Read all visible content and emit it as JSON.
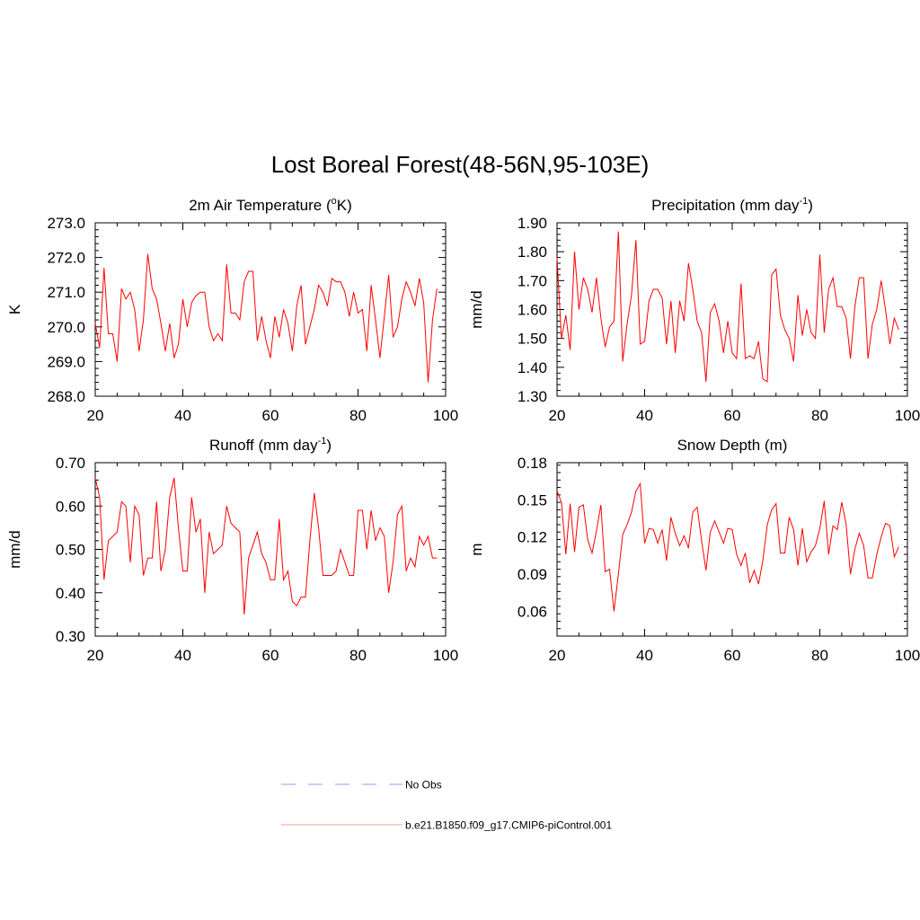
{
  "title": "Lost Boreal Forest(48-56N,95-103E)",
  "colors": {
    "model_line": "#ff0000",
    "obs_line": "#9999ff",
    "axis": "#000000"
  },
  "legend": {
    "obs_label": "No Obs",
    "model_label": "b.e21.B1850.f09_g17.CMIP6-piControl.001"
  },
  "chart_data": [
    {
      "type": "line",
      "title": "2m Air Temperature (°K)",
      "title_main": "2m Air Temperature (",
      "title_sup": "o",
      "title_after": "K)",
      "ylabel": "K",
      "xlabel": "",
      "xlim": [
        20,
        100
      ],
      "ylim": [
        268.0,
        273.0
      ],
      "xticks": [
        20,
        40,
        60,
        80,
        100
      ],
      "yticks": [
        268.0,
        269.0,
        270.0,
        271.0,
        272.0,
        273.0
      ],
      "ytick_labels": [
        "268.0",
        "269.0",
        "270.0",
        "271.0",
        "272.0",
        "273.0"
      ],
      "x": [
        20,
        21,
        22,
        23,
        24,
        25,
        26,
        27,
        28,
        29,
        30,
        31,
        32,
        33,
        34,
        35,
        36,
        37,
        38,
        39,
        40,
        41,
        42,
        43,
        44,
        45,
        46,
        47,
        48,
        49,
        50,
        51,
        52,
        53,
        54,
        55,
        56,
        57,
        58,
        59,
        60,
        61,
        62,
        63,
        64,
        65,
        66,
        67,
        68,
        69,
        70,
        71,
        72,
        73,
        74,
        75,
        76,
        77,
        78,
        79,
        80,
        81,
        82,
        83,
        84,
        85,
        86,
        87,
        88,
        89,
        90,
        91,
        92,
        93,
        94,
        95,
        96,
        97,
        98
      ],
      "series": [
        {
          "name": "b.e21.B1850.f09_g17.CMIP6-piControl.001",
          "values": [
            270.1,
            269.4,
            271.7,
            269.8,
            269.8,
            269.0,
            271.1,
            270.8,
            271.0,
            270.5,
            269.3,
            270.2,
            272.1,
            271.1,
            270.8,
            270.1,
            269.3,
            270.1,
            269.1,
            269.5,
            270.8,
            270.0,
            270.7,
            270.9,
            271.0,
            271.0,
            270.0,
            269.6,
            269.8,
            269.6,
            271.8,
            270.4,
            270.4,
            270.2,
            271.3,
            271.6,
            271.6,
            269.6,
            270.3,
            269.6,
            269.1,
            270.3,
            269.7,
            270.5,
            270.1,
            269.3,
            270.6,
            271.2,
            269.5,
            270.0,
            270.5,
            271.2,
            271.0,
            270.6,
            271.4,
            271.3,
            271.3,
            271.0,
            270.3,
            271.0,
            270.4,
            270.5,
            269.3,
            271.2,
            270.2,
            269.1,
            270.3,
            271.5,
            269.7,
            270.0,
            270.8,
            271.3,
            271.0,
            270.6,
            271.4,
            270.7,
            268.4,
            270.2,
            271.1
          ]
        }
      ]
    },
    {
      "type": "line",
      "title": "Precipitation (mm day-1)",
      "title_main": "Precipitation (mm day",
      "title_sup": "-1",
      "title_after": ")",
      "ylabel": "mm/d",
      "xlabel": "",
      "xlim": [
        20,
        100
      ],
      "ylim": [
        1.3,
        1.9
      ],
      "xticks": [
        20,
        40,
        60,
        80,
        100
      ],
      "yticks": [
        1.3,
        1.4,
        1.5,
        1.6,
        1.7,
        1.8,
        1.9
      ],
      "ytick_labels": [
        "1.30",
        "1.40",
        "1.50",
        "1.60",
        "1.70",
        "1.80",
        "1.90"
      ],
      "x": [
        20,
        21,
        22,
        23,
        24,
        25,
        26,
        27,
        28,
        29,
        30,
        31,
        32,
        33,
        34,
        35,
        36,
        37,
        38,
        39,
        40,
        41,
        42,
        43,
        44,
        45,
        46,
        47,
        48,
        49,
        50,
        51,
        52,
        53,
        54,
        55,
        56,
        57,
        58,
        59,
        60,
        61,
        62,
        63,
        64,
        65,
        66,
        67,
        68,
        69,
        70,
        71,
        72,
        73,
        74,
        75,
        76,
        77,
        78,
        79,
        80,
        81,
        82,
        83,
        84,
        85,
        86,
        87,
        88,
        89,
        90,
        91,
        92,
        93,
        94,
        95,
        96,
        97,
        98
      ],
      "series": [
        {
          "name": "b.e21.B1850.f09_g17.CMIP6-piControl.001",
          "values": [
            1.78,
            1.5,
            1.58,
            1.46,
            1.8,
            1.6,
            1.71,
            1.67,
            1.59,
            1.71,
            1.57,
            1.47,
            1.54,
            1.56,
            1.87,
            1.42,
            1.55,
            1.65,
            1.84,
            1.48,
            1.49,
            1.63,
            1.67,
            1.67,
            1.64,
            1.48,
            1.63,
            1.45,
            1.63,
            1.56,
            1.76,
            1.67,
            1.56,
            1.52,
            1.35,
            1.59,
            1.62,
            1.56,
            1.45,
            1.56,
            1.45,
            1.43,
            1.69,
            1.43,
            1.44,
            1.43,
            1.49,
            1.36,
            1.35,
            1.72,
            1.74,
            1.58,
            1.53,
            1.5,
            1.42,
            1.65,
            1.51,
            1.6,
            1.52,
            1.5,
            1.79,
            1.52,
            1.67,
            1.71,
            1.61,
            1.61,
            1.57,
            1.43,
            1.61,
            1.71,
            1.71,
            1.43,
            1.55,
            1.6,
            1.7,
            1.6,
            1.48,
            1.57,
            1.53
          ]
        }
      ]
    },
    {
      "type": "line",
      "title": "Runoff (mm day-1)",
      "title_main": "Runoff (mm day",
      "title_sup": "-1",
      "title_after": ")",
      "ylabel": "mm/d",
      "xlabel": "",
      "xlim": [
        20,
        100
      ],
      "ylim": [
        0.3,
        0.7
      ],
      "xticks": [
        20,
        40,
        60,
        80,
        100
      ],
      "yticks": [
        0.3,
        0.4,
        0.5,
        0.6,
        0.7
      ],
      "ytick_labels": [
        "0.30",
        "0.40",
        "0.50",
        "0.60",
        "0.70"
      ],
      "x": [
        20,
        21,
        22,
        23,
        24,
        25,
        26,
        27,
        28,
        29,
        30,
        31,
        32,
        33,
        34,
        35,
        36,
        37,
        38,
        39,
        40,
        41,
        42,
        43,
        44,
        45,
        46,
        47,
        48,
        49,
        50,
        51,
        52,
        53,
        54,
        55,
        56,
        57,
        58,
        59,
        60,
        61,
        62,
        63,
        64,
        65,
        66,
        67,
        68,
        69,
        70,
        71,
        72,
        73,
        74,
        75,
        76,
        77,
        78,
        79,
        80,
        81,
        82,
        83,
        84,
        85,
        86,
        87,
        88,
        89,
        90,
        91,
        92,
        93,
        94,
        95,
        96,
        97,
        98
      ],
      "series": [
        {
          "name": "b.e21.B1850.f09_g17.CMIP6-piControl.001",
          "values": [
            0.665,
            0.62,
            0.43,
            0.52,
            0.53,
            0.54,
            0.61,
            0.6,
            0.47,
            0.6,
            0.58,
            0.44,
            0.48,
            0.48,
            0.61,
            0.45,
            0.5,
            0.62,
            0.665,
            0.55,
            0.45,
            0.45,
            0.62,
            0.54,
            0.57,
            0.4,
            0.54,
            0.49,
            0.5,
            0.51,
            0.6,
            0.56,
            0.55,
            0.54,
            0.35,
            0.48,
            0.51,
            0.54,
            0.49,
            0.47,
            0.43,
            0.43,
            0.57,
            0.43,
            0.45,
            0.38,
            0.37,
            0.39,
            0.39,
            0.52,
            0.63,
            0.55,
            0.44,
            0.44,
            0.44,
            0.45,
            0.5,
            0.47,
            0.44,
            0.44,
            0.59,
            0.59,
            0.5,
            0.59,
            0.52,
            0.55,
            0.53,
            0.4,
            0.47,
            0.58,
            0.6,
            0.45,
            0.48,
            0.46,
            0.53,
            0.51,
            0.53,
            0.48,
            0.48
          ]
        }
      ]
    },
    {
      "type": "line",
      "title": "Snow Depth (m)",
      "title_main": "Snow Depth (m)",
      "title_sup": "",
      "title_after": "",
      "ylabel": "m",
      "xlabel": "",
      "xlim": [
        20,
        100
      ],
      "ylim": [
        0.04,
        0.18
      ],
      "xticks": [
        20,
        40,
        60,
        80,
        100
      ],
      "yticks": [
        0.06,
        0.09,
        0.12,
        0.15,
        0.18
      ],
      "ytick_labels": [
        "0.06",
        "0.09",
        "0.12",
        "0.15",
        "0.18"
      ],
      "x": [
        20,
        21,
        22,
        23,
        24,
        25,
        26,
        27,
        28,
        29,
        30,
        31,
        32,
        33,
        34,
        35,
        36,
        37,
        38,
        39,
        40,
        41,
        42,
        43,
        44,
        45,
        46,
        47,
        48,
        49,
        50,
        51,
        52,
        53,
        54,
        55,
        56,
        57,
        58,
        59,
        60,
        61,
        62,
        63,
        64,
        65,
        66,
        67,
        68,
        69,
        70,
        71,
        72,
        73,
        74,
        75,
        76,
        77,
        78,
        79,
        80,
        81,
        82,
        83,
        84,
        85,
        86,
        87,
        88,
        89,
        90,
        91,
        92,
        93,
        94,
        95,
        96,
        97,
        98
      ],
      "series": [
        {
          "name": "b.e21.B1850.f09_g17.CMIP6-piControl.001",
          "values": [
            0.157,
            0.148,
            0.106,
            0.147,
            0.108,
            0.144,
            0.146,
            0.118,
            0.107,
            0.125,
            0.146,
            0.092,
            0.094,
            0.06,
            0.09,
            0.122,
            0.13,
            0.14,
            0.157,
            0.163,
            0.115,
            0.127,
            0.126,
            0.115,
            0.126,
            0.101,
            0.136,
            0.123,
            0.113,
            0.121,
            0.111,
            0.14,
            0.144,
            0.117,
            0.093,
            0.124,
            0.133,
            0.124,
            0.115,
            0.127,
            0.126,
            0.106,
            0.097,
            0.107,
            0.083,
            0.093,
            0.082,
            0.101,
            0.13,
            0.142,
            0.147,
            0.107,
            0.107,
            0.136,
            0.126,
            0.097,
            0.127,
            0.1,
            0.108,
            0.113,
            0.127,
            0.149,
            0.106,
            0.129,
            0.126,
            0.148,
            0.13,
            0.09,
            0.11,
            0.123,
            0.113,
            0.087,
            0.087,
            0.106,
            0.12,
            0.131,
            0.129,
            0.104,
            0.112
          ]
        }
      ]
    }
  ]
}
